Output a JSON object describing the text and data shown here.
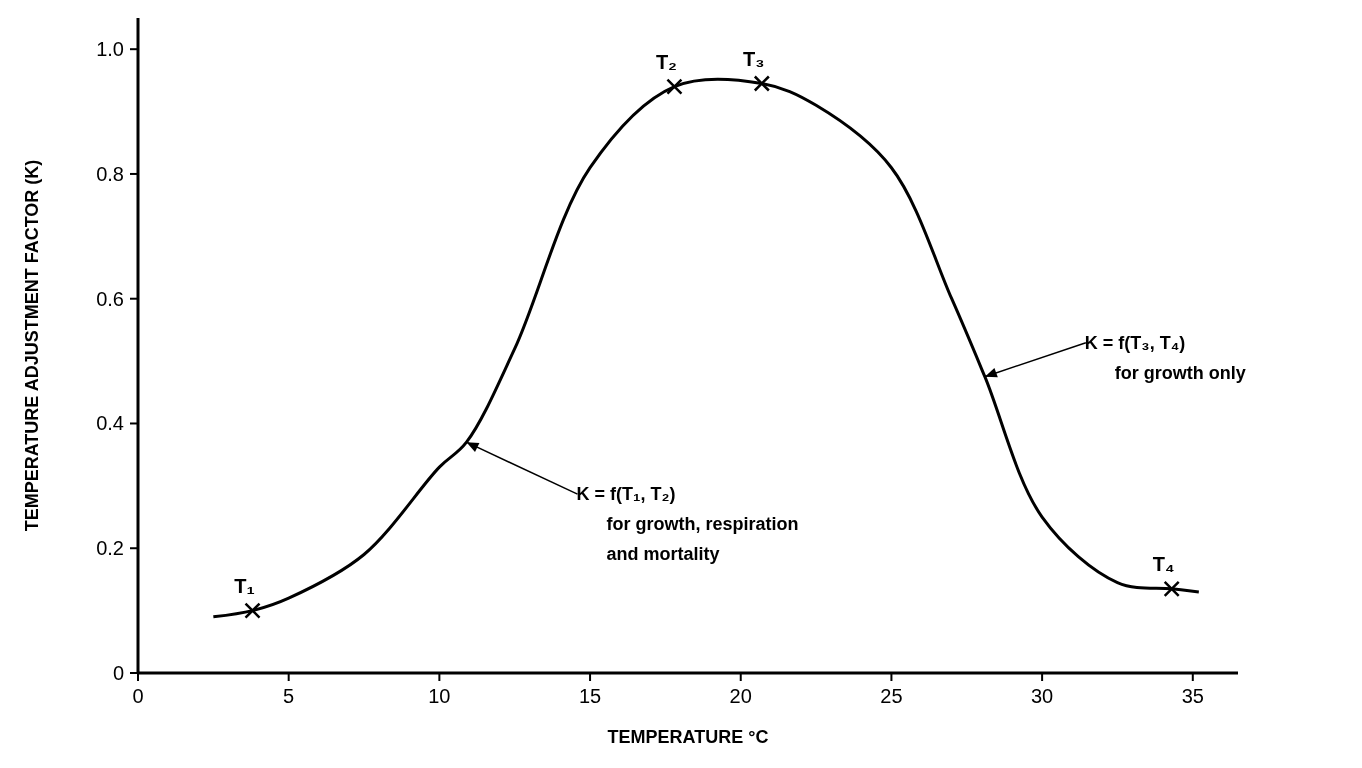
{
  "chart_data": {
    "type": "line",
    "xlabel": "TEMPERATURE °C",
    "ylabel": "TEMPERATURE ADJUSTMENT FACTOR (K)",
    "xlim": [
      0,
      36.5
    ],
    "ylim": [
      0,
      1.05
    ],
    "xticks": [
      0,
      5,
      10,
      15,
      20,
      25,
      30,
      35
    ],
    "yticks": [
      0,
      0.2,
      0.4,
      0.6,
      0.8,
      {
        "value": 1,
        "label": "1.0"
      }
    ],
    "grid": false,
    "series": [
      {
        "type": "line",
        "color": "#000000",
        "marker": "none",
        "line_style": "solid",
        "x": [
          2.5,
          3.8,
          5,
          7.5,
          10,
          10.9,
          12.5,
          15,
          17.8,
          20.7,
          22.5,
          25,
          27,
          28.1,
          30,
          32.5,
          34.3,
          35.2
        ],
        "values": [
          0.09,
          0.1,
          0.12,
          0.19,
          0.33,
          0.37,
          0.52,
          0.81,
          0.94,
          0.945,
          0.91,
          0.81,
          0.6,
          0.475,
          0.25,
          0.145,
          0.135,
          0.13
        ]
      },
      {
        "type": "scatter",
        "color": "#000000",
        "marker": "cross",
        "x": [
          3.8,
          17.8,
          20.7,
          34.3
        ],
        "values": [
          0.1,
          0.94,
          0.945,
          0.135
        ],
        "value_labels": [
          "T₁",
          "T₂",
          "T₃",
          "T₄"
        ]
      }
    ],
    "annotations": [
      {
        "text": "K = f(T₁, T₂)\nfor growth, respiration\nand mortality",
        "x": 10.9,
        "y": 0.37
      },
      {
        "text": "K = f(T₃, T₄)\nfor growth only",
        "x": 28.1,
        "y": 0.475
      }
    ]
  }
}
